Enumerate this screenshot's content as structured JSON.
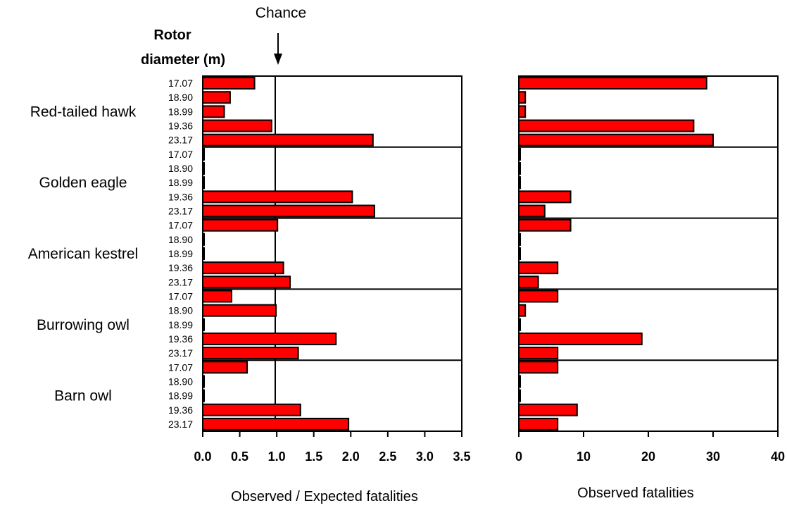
{
  "annotations": {
    "chance": "Chance",
    "rotor_line1": "Rotor",
    "rotor_line2": "diameter (m)",
    "rotor_color": "#cc0000"
  },
  "bar_color": "#ff0000",
  "chart_data": [
    {
      "type": "bar",
      "orientation": "horizontal",
      "xlabel": "Observed / Expected fatalities",
      "xlim": [
        0,
        3.5
      ],
      "xticks": [
        "0.0",
        "0.5",
        "1.0",
        "1.5",
        "2.0",
        "2.5",
        "3.0",
        "3.5"
      ],
      "reference_line": {
        "x": 1.0,
        "label": "Chance"
      },
      "groups": [
        {
          "name": "Red-tailed hawk",
          "diameters": [
            "17.07",
            "18.90",
            "18.99",
            "19.36",
            "23.17"
          ],
          "values": [
            0.7,
            0.37,
            0.29,
            0.93,
            2.3
          ]
        },
        {
          "name": "Golden eagle",
          "diameters": [
            "17.07",
            "18.90",
            "18.99",
            "19.36",
            "23.17"
          ],
          "values": [
            0,
            0,
            0,
            2.02,
            2.32
          ]
        },
        {
          "name": "American kestrel",
          "diameters": [
            "17.07",
            "18.90",
            "18.99",
            "19.36",
            "23.17"
          ],
          "values": [
            1.01,
            0,
            0,
            1.09,
            1.18
          ]
        },
        {
          "name": "Burrowing owl",
          "diameters": [
            "17.07",
            "18.90",
            "18.99",
            "19.36",
            "23.17"
          ],
          "values": [
            0.39,
            0.99,
            0,
            1.8,
            1.29
          ]
        },
        {
          "name": "Barn owl",
          "diameters": [
            "17.07",
            "18.90",
            "18.99",
            "19.36",
            "23.17"
          ],
          "values": [
            0.6,
            0,
            0,
            1.32,
            1.97
          ]
        }
      ]
    },
    {
      "type": "bar",
      "orientation": "horizontal",
      "xlabel": "Observed fatalities",
      "xlim": [
        0,
        40
      ],
      "xticks": [
        "0",
        "10",
        "20",
        "30",
        "40"
      ],
      "groups": [
        {
          "name": "Red-tailed hawk",
          "values": [
            29,
            1,
            1,
            27,
            30
          ]
        },
        {
          "name": "Golden eagle",
          "values": [
            0,
            0,
            0,
            8,
            4
          ]
        },
        {
          "name": "American kestrel",
          "values": [
            8,
            0,
            0,
            6,
            3
          ]
        },
        {
          "name": "Burrowing owl",
          "values": [
            6,
            1,
            0,
            19,
            6
          ]
        },
        {
          "name": "Barn owl",
          "values": [
            6,
            0,
            0,
            9,
            6
          ]
        }
      ]
    }
  ]
}
